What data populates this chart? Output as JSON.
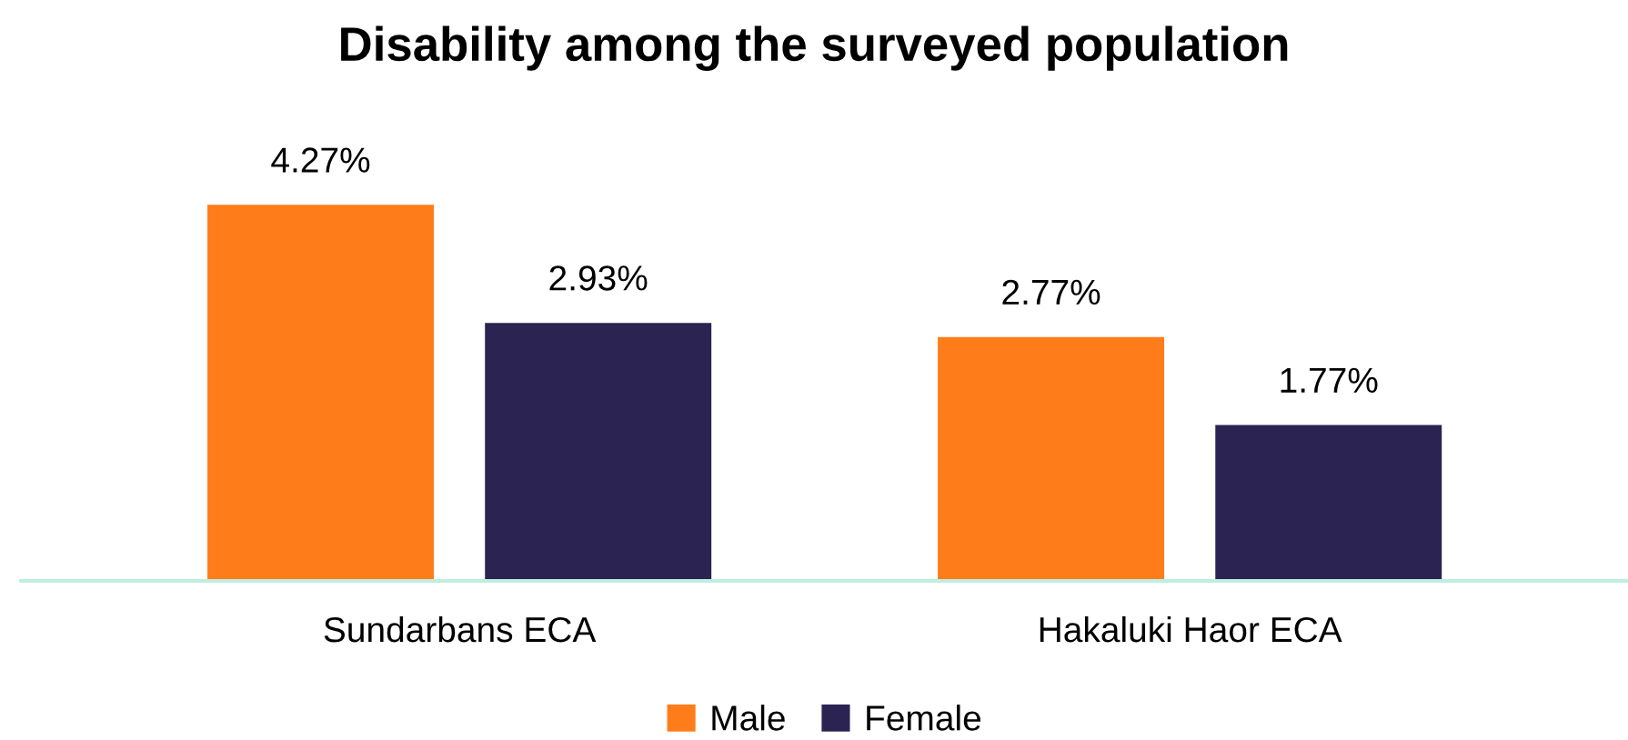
{
  "chart_data": {
    "type": "bar",
    "title": "Disability among the surveyed population",
    "categories": [
      "Sundarbans ECA",
      "Hakaluki Haor ECA"
    ],
    "series": [
      {
        "name": "Male",
        "color": "#ff7c1a",
        "values": [
          4.27,
          2.77
        ],
        "value_labels": [
          "4.27%",
          "2.77%"
        ]
      },
      {
        "name": "Female",
        "color": "#2b2352",
        "values": [
          2.93,
          1.77
        ],
        "value_labels": [
          "2.93%",
          "1.77%"
        ]
      }
    ],
    "legend": "bottom",
    "grid": false
  }
}
